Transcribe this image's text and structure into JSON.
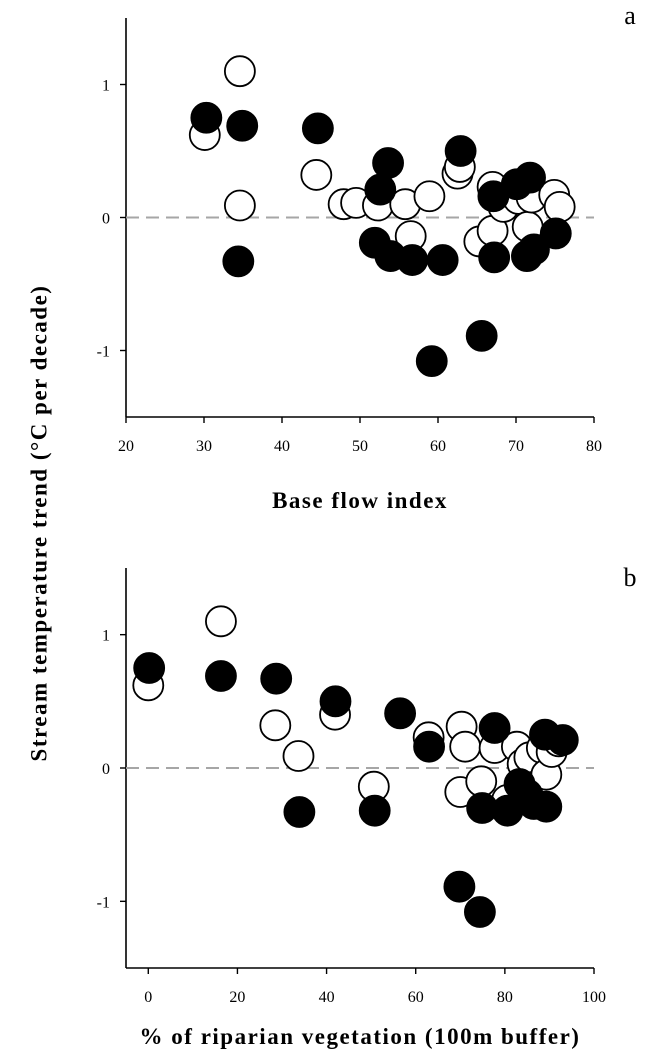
{
  "figure": {
    "ylabel": "Stream temperature trend (°C per decade)"
  },
  "chart_data": [
    {
      "type": "scatter",
      "panel_label": "a",
      "xlabel": "Base flow index",
      "ylabel": "Stream temperature trend (°C per decade)",
      "xlim": [
        20,
        80
      ],
      "ylim": [
        -1.5,
        1.5
      ],
      "xticks": [
        "20",
        "30",
        "40",
        "50",
        "60",
        "70",
        "80"
      ],
      "yticks": [
        "1",
        "0",
        "-1"
      ],
      "reference_line": 0,
      "grid": false,
      "series": [
        {
          "marker": "open-circle",
          "points": [
            {
              "x": 30.1,
              "y": 0.62
            },
            {
              "x": 34.6,
              "y": 1.1
            },
            {
              "x": 34.6,
              "y": 0.09
            },
            {
              "x": 44.4,
              "y": 0.32
            },
            {
              "x": 47.9,
              "y": 0.1
            },
            {
              "x": 49.5,
              "y": 0.11
            },
            {
              "x": 52.3,
              "y": 0.09
            },
            {
              "x": 55.8,
              "y": 0.1
            },
            {
              "x": 56.5,
              "y": -0.14
            },
            {
              "x": 58.9,
              "y": 0.16
            },
            {
              "x": 62.5,
              "y": 0.33
            },
            {
              "x": 62.8,
              "y": 0.38
            },
            {
              "x": 65.3,
              "y": -0.18
            },
            {
              "x": 67.0,
              "y": 0.23
            },
            {
              "x": 67.0,
              "y": -0.1
            },
            {
              "x": 68.4,
              "y": 0.08
            },
            {
              "x": 70.3,
              "y": 0.14
            },
            {
              "x": 71.5,
              "y": -0.07
            },
            {
              "x": 72.0,
              "y": 0.15
            },
            {
              "x": 74.9,
              "y": 0.17
            },
            {
              "x": 75.6,
              "y": 0.08
            }
          ]
        },
        {
          "marker": "filled-circle",
          "points": [
            {
              "x": 30.3,
              "y": 0.75
            },
            {
              "x": 34.9,
              "y": 0.69
            },
            {
              "x": 34.4,
              "y": -0.33
            },
            {
              "x": 44.6,
              "y": 0.67
            },
            {
              "x": 51.9,
              "y": -0.19
            },
            {
              "x": 52.6,
              "y": 0.21
            },
            {
              "x": 53.6,
              "y": 0.41
            },
            {
              "x": 53.9,
              "y": -0.29
            },
            {
              "x": 56.7,
              "y": -0.32
            },
            {
              "x": 59.2,
              "y": -1.08
            },
            {
              "x": 60.6,
              "y": -0.32
            },
            {
              "x": 62.9,
              "y": 0.5
            },
            {
              "x": 65.6,
              "y": -0.89
            },
            {
              "x": 67.1,
              "y": 0.16
            },
            {
              "x": 67.2,
              "y": -0.3
            },
            {
              "x": 70.1,
              "y": 0.25
            },
            {
              "x": 71.4,
              "y": -0.29
            },
            {
              "x": 71.8,
              "y": 0.3
            },
            {
              "x": 72.3,
              "y": -0.24
            },
            {
              "x": 75.1,
              "y": -0.12
            }
          ]
        }
      ]
    },
    {
      "type": "scatter",
      "panel_label": "b",
      "xlabel": "% of riparian vegetation (100m buffer)",
      "ylabel": "Stream temperature trend (°C per decade)",
      "xlim": [
        -5,
        100
      ],
      "ylim": [
        -1.5,
        1.5
      ],
      "xticks": [
        "0",
        "20",
        "40",
        "60",
        "80",
        "100"
      ],
      "yticks": [
        "1",
        "0",
        "-1"
      ],
      "reference_line": 0,
      "grid": false,
      "series": [
        {
          "marker": "open-circle",
          "points": [
            {
              "x": 0.0,
              "y": 0.62
            },
            {
              "x": 16.3,
              "y": 1.1
            },
            {
              "x": 28.5,
              "y": 0.32
            },
            {
              "x": 33.7,
              "y": 0.09
            },
            {
              "x": 41.9,
              "y": 0.4
            },
            {
              "x": 50.6,
              "y": -0.14
            },
            {
              "x": 62.9,
              "y": 0.23
            },
            {
              "x": 70.3,
              "y": 0.31
            },
            {
              "x": 70.0,
              "y": -0.18
            },
            {
              "x": 71.1,
              "y": 0.16
            },
            {
              "x": 74.7,
              "y": -0.1
            },
            {
              "x": 77.7,
              "y": 0.15
            },
            {
              "x": 82.7,
              "y": 0.16
            },
            {
              "x": 84.0,
              "y": 0.03
            },
            {
              "x": 85.5,
              "y": 0.08
            },
            {
              "x": 88.3,
              "y": 0.15
            },
            {
              "x": 89.3,
              "y": -0.05
            },
            {
              "x": 90.5,
              "y": 0.12
            },
            {
              "x": 92.1,
              "y": 0.2
            },
            {
              "x": 85.0,
              "y": -0.2
            },
            {
              "x": 80.5,
              "y": -0.24
            }
          ]
        },
        {
          "marker": "filled-circle",
          "points": [
            {
              "x": 0.2,
              "y": 0.75
            },
            {
              "x": 16.3,
              "y": 0.69
            },
            {
              "x": 28.7,
              "y": 0.67
            },
            {
              "x": 33.9,
              "y": -0.33
            },
            {
              "x": 42.0,
              "y": 0.5
            },
            {
              "x": 50.8,
              "y": -0.32
            },
            {
              "x": 56.5,
              "y": 0.41
            },
            {
              "x": 63.0,
              "y": 0.16
            },
            {
              "x": 69.8,
              "y": -0.89
            },
            {
              "x": 74.4,
              "y": -1.08
            },
            {
              "x": 74.9,
              "y": -0.3
            },
            {
              "x": 77.7,
              "y": 0.3
            },
            {
              "x": 80.6,
              "y": -0.32
            },
            {
              "x": 83.3,
              "y": -0.12
            },
            {
              "x": 85.3,
              "y": -0.22
            },
            {
              "x": 86.5,
              "y": -0.27
            },
            {
              "x": 89.3,
              "y": -0.29
            },
            {
              "x": 89.0,
              "y": 0.25
            },
            {
              "x": 93.0,
              "y": 0.21
            }
          ]
        }
      ]
    }
  ]
}
